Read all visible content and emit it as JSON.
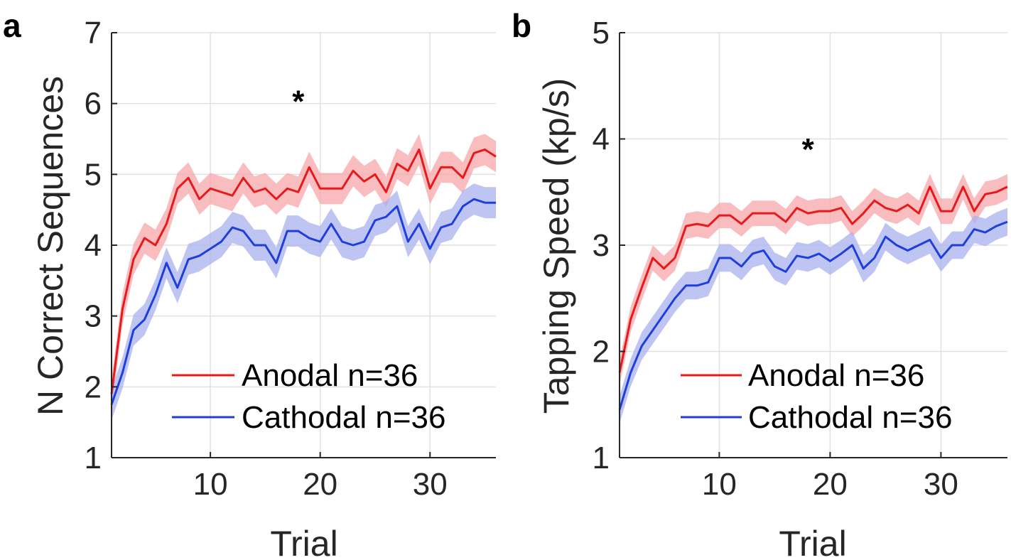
{
  "colors": {
    "anodal": "#e8191b",
    "anodal_band": "#f7a7a9",
    "cathodal": "#1f3fdc",
    "cathodal_band": "#a8b2ef",
    "grid": "#e1e1e1",
    "axis": "#262626"
  },
  "chart_data": [
    {
      "type": "line",
      "panel_label": "a",
      "title": "",
      "xlabel": "Trial",
      "ylabel": "N Correct Sequences",
      "xlim": [
        1,
        36
      ],
      "ylim": [
        1,
        7
      ],
      "xticks": [
        10,
        20,
        30
      ],
      "yticks": [
        1,
        2,
        3,
        4,
        5,
        6,
        7
      ],
      "grid": true,
      "legend_position": "bottom-right",
      "significance_marker": {
        "text": "*",
        "x": 18,
        "y": 6.1
      },
      "x": [
        1,
        2,
        3,
        4,
        5,
        6,
        7,
        8,
        9,
        10,
        11,
        12,
        13,
        14,
        15,
        16,
        17,
        18,
        19,
        20,
        21,
        22,
        23,
        24,
        25,
        26,
        27,
        28,
        29,
        30,
        31,
        32,
        33,
        34,
        35,
        36
      ],
      "series": [
        {
          "name": "Anodal n=36",
          "key": "anodal",
          "values": [
            1.9,
            3.1,
            3.8,
            4.1,
            4.0,
            4.3,
            4.8,
            4.95,
            4.65,
            4.8,
            4.75,
            4.7,
            4.95,
            4.75,
            4.8,
            4.65,
            4.8,
            4.75,
            5.1,
            4.8,
            4.8,
            4.8,
            5.05,
            4.9,
            5.0,
            4.75,
            5.15,
            5.05,
            5.35,
            4.8,
            5.1,
            5.1,
            4.95,
            5.3,
            5.35,
            5.25
          ],
          "band": 0.22
        },
        {
          "name": "Cathodal n=36",
          "key": "cathodal",
          "values": [
            1.75,
            2.2,
            2.8,
            2.95,
            3.3,
            3.75,
            3.4,
            3.8,
            3.85,
            3.95,
            4.05,
            4.25,
            4.2,
            4.0,
            4.0,
            3.75,
            4.2,
            4.2,
            4.1,
            4.05,
            4.3,
            4.05,
            4.0,
            4.05,
            4.35,
            4.4,
            4.55,
            4.05,
            4.3,
            3.95,
            4.25,
            4.3,
            4.55,
            4.65,
            4.6,
            4.6
          ],
          "band": 0.22
        }
      ]
    },
    {
      "type": "line",
      "panel_label": "b",
      "title": "",
      "xlabel": "Trial",
      "ylabel": "Tapping Speed  (kp/s)",
      "xlim": [
        1,
        36
      ],
      "ylim": [
        1,
        5
      ],
      "xticks": [
        10,
        20,
        30
      ],
      "yticks": [
        1,
        2,
        3,
        4,
        5
      ],
      "grid": true,
      "legend_position": "bottom-right",
      "significance_marker": {
        "text": "*",
        "x": 18,
        "y": 3.95
      },
      "x": [
        1,
        2,
        3,
        4,
        5,
        6,
        7,
        8,
        9,
        10,
        11,
        12,
        13,
        14,
        15,
        16,
        17,
        18,
        19,
        20,
        21,
        22,
        23,
        24,
        25,
        26,
        27,
        28,
        29,
        30,
        31,
        32,
        33,
        34,
        35,
        36
      ],
      "series": [
        {
          "name": "Anodal n=36",
          "key": "anodal",
          "values": [
            1.8,
            2.3,
            2.6,
            2.88,
            2.78,
            2.88,
            3.18,
            3.2,
            3.18,
            3.28,
            3.28,
            3.2,
            3.3,
            3.3,
            3.3,
            3.22,
            3.35,
            3.3,
            3.32,
            3.32,
            3.35,
            3.2,
            3.3,
            3.42,
            3.35,
            3.32,
            3.38,
            3.3,
            3.55,
            3.32,
            3.32,
            3.55,
            3.32,
            3.48,
            3.5,
            3.55
          ],
          "band": 0.12
        },
        {
          "name": "Cathodal n=36",
          "key": "cathodal",
          "values": [
            1.45,
            1.8,
            2.05,
            2.2,
            2.35,
            2.5,
            2.62,
            2.62,
            2.65,
            2.88,
            2.88,
            2.8,
            2.92,
            2.95,
            2.8,
            2.75,
            2.9,
            2.88,
            2.92,
            2.85,
            2.92,
            3.0,
            2.78,
            2.88,
            3.08,
            3.0,
            2.95,
            3.0,
            3.05,
            2.88,
            3.0,
            3.0,
            3.15,
            3.12,
            3.18,
            3.22
          ],
          "band": 0.13
        }
      ]
    }
  ]
}
